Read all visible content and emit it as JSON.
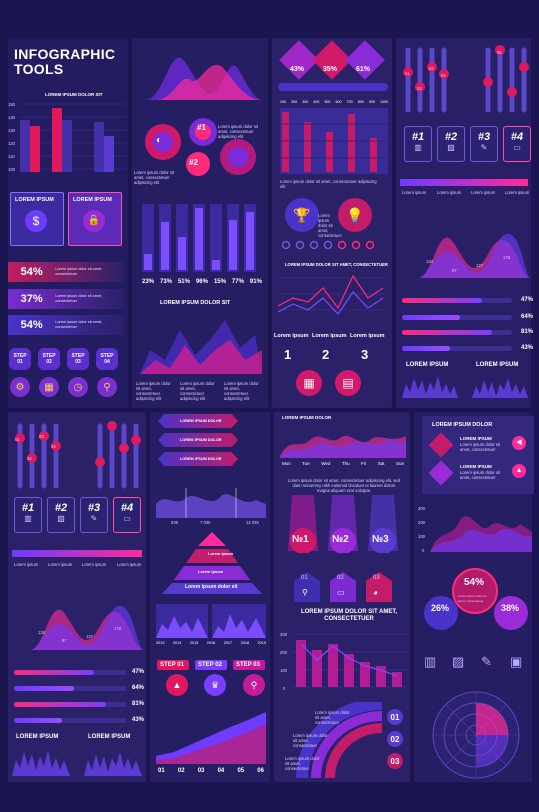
{
  "title": "INFOGRAPHIC\nTOOLS",
  "lorem_dolor_sit": "LOREM IPSUM DOLOR SIT",
  "lorem_ipsum": "LOREM IPSUM",
  "lorem_ipsum_lower": "Lorem ipsum",
  "lorem_ipsum_dolor": "LOREM IPSUM DOLOR",
  "lorem_dolor_sit_amet": "LOREM IPSUM DOLOR SIT AMET, CONSECTETUER",
  "lorem_dolor_sit_amet_2": "LOREM IPSUM DOLOR SIT AMET,\nCONSECTETUER",
  "lorem_dolor_sit_lower": "Lorem ipsum dolor sit",
  "body_text": "Lorem ipsum dolor sit amet, consectetuer adipiscing elit",
  "short_text": "Lorem ipsum dolor sit amet, consectetuer",
  "para_text": "Lorem ipsum dolor sit amet, consectetuer adipiscing elit, sed diam nonummy nibh euismod tincidunt ut laoreet dolore magna aliquam erat volutpat.",
  "y_ticks": [
    "150",
    "140",
    "130",
    "120",
    "110",
    "100"
  ],
  "bar_pct_labels": [
    "23%",
    "73%",
    "51%",
    "96%",
    "15%",
    "77%",
    "91%"
  ],
  "diamonds": [
    "43%",
    "35%",
    "61%"
  ],
  "grid_ticks": [
    "100",
    "200",
    "300",
    "400",
    "500",
    "600",
    "700",
    "800",
    "900",
    "1000"
  ],
  "pct_rows": [
    "54%",
    "37%",
    "54%"
  ],
  "steps": [
    "STEP\n01",
    "STEP\n02",
    "STEP\n03",
    "STEP\n04"
  ],
  "hash_labels": [
    "#1",
    "#2",
    "#3",
    "#4"
  ],
  "progress": [
    {
      "label": "47%",
      "value": 0.47
    },
    {
      "label": "64%",
      "value": 0.64
    },
    {
      "label": "81%",
      "value": 0.81
    },
    {
      "label": "43%",
      "value": 0.43
    }
  ],
  "num_circles": [
    "1",
    "2",
    "3"
  ],
  "pin_top": [
    "01",
    "02",
    "03",
    "04",
    "05"
  ],
  "pin_low": [
    "01",
    "02",
    "03",
    "04"
  ],
  "pin_low_b": [
    "01",
    "02",
    "03",
    "04",
    "05",
    "06"
  ],
  "wave_labels": [
    "134",
    "87",
    "127",
    "178"
  ],
  "days": [
    "Mon",
    "Tue",
    "Wed",
    "Thu",
    "Fri",
    "Sat",
    "Sun"
  ],
  "no_labels": [
    "№1",
    "№2",
    "№3"
  ],
  "step_red": [
    "STEP 01",
    "STEP 02",
    "STEP 03"
  ],
  "area_ticks": [
    "535",
    "7 035",
    "14 035"
  ],
  "years": [
    "2013",
    "2014",
    "2015",
    "2016",
    "2017",
    "2018",
    "2019"
  ],
  "pos_nums": [
    "01",
    "02",
    "03"
  ],
  "circle_pcts": [
    "54%",
    "26%",
    "38%"
  ],
  "stair_labels": [
    "01",
    "02",
    "03",
    "04",
    "05",
    "06"
  ],
  "list_nums": [
    "01",
    "02",
    "03"
  ],
  "yaxis_right": [
    "300",
    "200",
    "100",
    "0"
  ],
  "yaxis_mid": [
    "300",
    "200",
    "100",
    "0"
  ],
  "colors": {
    "bg": "#1c1650",
    "panel": "#2a2168",
    "accent": "#ff2b7a",
    "violet": "#7b3dff"
  }
}
